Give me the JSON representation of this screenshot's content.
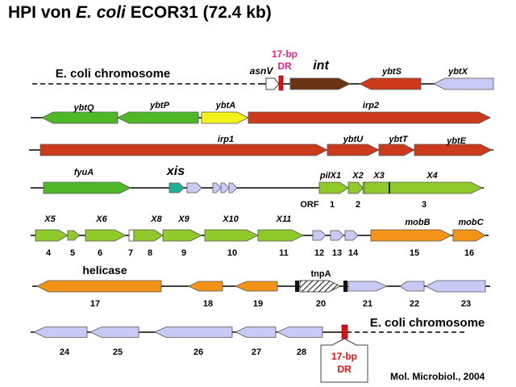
{
  "title": {
    "prefix": "HPI von ",
    "species": "E. coli",
    "suffix": " ECOR31  (72.4 kb)"
  },
  "citation": "Mol. Microbiol., 2004",
  "colors": {
    "green": "#4fb828",
    "lime": "#8fca2a",
    "red": "#cc3a1c",
    "brown": "#6b3514",
    "yellow": "#f2f21a",
    "orange": "#f39418",
    "lavender": "#c9c9f5",
    "teal": "#22b095",
    "magenta": "#e0288c",
    "dr_red": "#e01010"
  },
  "texts": {
    "chrom_left": "E. coli  chromosome",
    "chrom_right": "E. coli  chromosome",
    "asnV": "asnV",
    "dr_top": "17-bp",
    "dr_bottom": "DR",
    "int": "int",
    "xis": "xis",
    "helicase": "helicase",
    "tnpA": "tnpA",
    "orf": "ORF",
    "box_line1": "17-bp",
    "box_line2": "DR"
  },
  "genes": [
    {
      "name": "ybtS",
      "color": "red",
      "dir": "left"
    },
    {
      "name": "ybtX",
      "color": "lavender",
      "dir": "left"
    },
    {
      "name": "ybtQ",
      "color": "green",
      "dir": "left"
    },
    {
      "name": "ybtP",
      "color": "green",
      "dir": "left"
    },
    {
      "name": "ybtA",
      "color": "yellow",
      "dir": "right"
    },
    {
      "name": "irp2",
      "color": "red",
      "dir": "right"
    },
    {
      "name": "irp1",
      "color": "red",
      "dir": "right"
    },
    {
      "name": "ybtU",
      "color": "red",
      "dir": "right"
    },
    {
      "name": "ybtT",
      "color": "red",
      "dir": "right"
    },
    {
      "name": "ybtE",
      "color": "red",
      "dir": "right"
    },
    {
      "name": "fyuA",
      "color": "green",
      "dir": "right"
    },
    {
      "name": "pilX1",
      "color": "lime",
      "dir": "right"
    },
    {
      "name": "X2",
      "color": "lime",
      "dir": "right"
    },
    {
      "name": "X3",
      "color": "lime",
      "dir": "right"
    },
    {
      "name": "X4",
      "color": "lime",
      "dir": "right"
    },
    {
      "name": "X5",
      "color": "lime",
      "dir": "right"
    },
    {
      "name": "X6",
      "color": "lime",
      "dir": "right"
    },
    {
      "name": "X8",
      "color": "lime",
      "dir": "right"
    },
    {
      "name": "X9",
      "color": "lime",
      "dir": "right"
    },
    {
      "name": "X10",
      "color": "lime",
      "dir": "right"
    },
    {
      "name": "X11",
      "color": "lime",
      "dir": "right"
    },
    {
      "name": "mobB",
      "color": "orange",
      "dir": "right"
    },
    {
      "name": "mobC",
      "color": "orange",
      "dir": "right"
    }
  ],
  "orf_numbers": [
    "1",
    "2",
    "3",
    "4",
    "5",
    "6",
    "7",
    "8",
    "9",
    "10",
    "11",
    "12",
    "13",
    "14",
    "15",
    "16",
    "17",
    "18",
    "19",
    "20",
    "21",
    "22",
    "23",
    "24",
    "25",
    "26",
    "27",
    "28"
  ]
}
